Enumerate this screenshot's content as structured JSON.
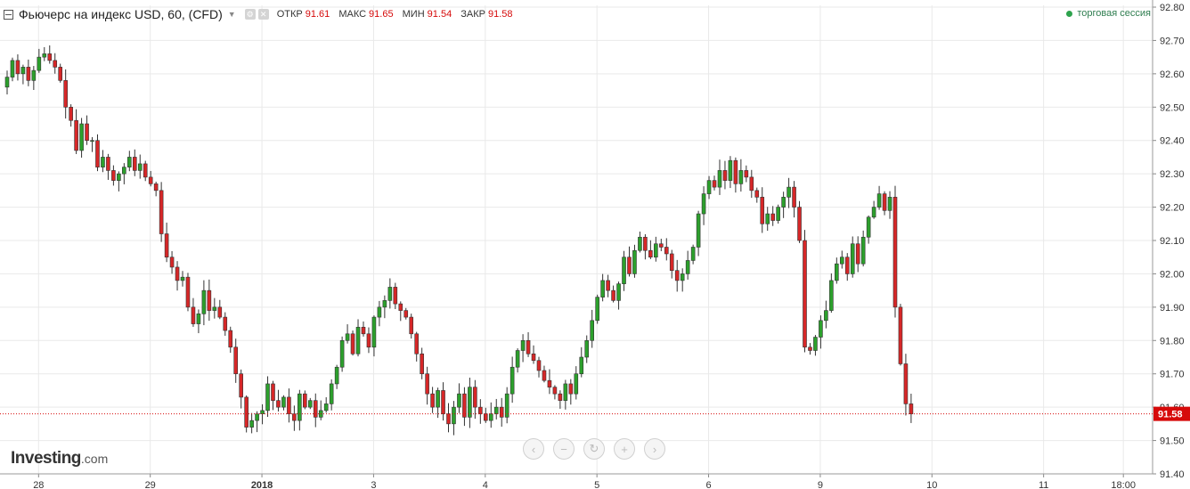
{
  "header": {
    "title": "Фьючерс на индекс USD, 60, (CFD)",
    "ohlc": [
      {
        "label": "ОТКР",
        "value": "91.61"
      },
      {
        "label": "МАКС",
        "value": "91.65"
      },
      {
        "label": "МИН",
        "value": "91.54"
      },
      {
        "label": "ЗАКР",
        "value": "91.58"
      }
    ],
    "session": "торговая сессия"
  },
  "logo": {
    "brand": "Investing",
    "domain": ".com"
  },
  "colors": {
    "up": "#2ca02c",
    "down": "#d62728",
    "last_price": "#d60a0a",
    "grid": "#e9e9e9"
  },
  "nav_icons": [
    "chevron-left-icon",
    "minus-icon",
    "reset-icon",
    "plus-icon",
    "chevron-right-icon"
  ],
  "chart_data": {
    "type": "candlestick",
    "y_ticks": [
      "92.80",
      "92.70",
      "92.60",
      "92.50",
      "92.40",
      "92.30",
      "92.20",
      "92.10",
      "92.00",
      "91.90",
      "91.80",
      "91.70",
      "91.60",
      "91.50",
      "91.40"
    ],
    "ylim": [
      91.4,
      92.8
    ],
    "grid": true,
    "last_price": 91.58,
    "last_price_label": "91.58",
    "x_ticks": [
      {
        "label": "28",
        "bar": 6
      },
      {
        "label": "29",
        "bar": 27
      },
      {
        "label": "2018",
        "bar": 48
      },
      {
        "label": "3",
        "bar": 69
      },
      {
        "label": "4",
        "bar": 90
      },
      {
        "label": "5",
        "bar": 111
      },
      {
        "label": "6",
        "bar": 132
      },
      {
        "label": "9",
        "bar": 153
      },
      {
        "label": "10",
        "bar": 174
      },
      {
        "label": "11",
        "bar": 195
      },
      {
        "label": "18:00",
        "bar": 210
      }
    ],
    "closes": [
      92.59,
      92.64,
      92.6,
      92.62,
      92.58,
      92.61,
      92.65,
      92.66,
      92.64,
      92.62,
      92.58,
      92.5,
      92.46,
      92.37,
      92.45,
      92.4,
      92.4,
      92.32,
      92.35,
      92.31,
      92.28,
      92.3,
      92.32,
      92.35,
      92.31,
      92.33,
      92.29,
      92.27,
      92.25,
      92.12,
      92.05,
      92.02,
      91.98,
      91.99,
      91.9,
      91.85,
      91.88,
      91.95,
      91.89,
      91.9,
      91.87,
      91.83,
      91.78,
      91.7,
      91.63,
      91.54,
      91.56,
      91.58,
      91.59,
      91.67,
      91.62,
      91.6,
      91.63,
      91.58,
      91.56,
      91.64,
      91.6,
      91.62,
      91.57,
      91.59,
      91.61,
      91.67,
      91.72,
      91.8,
      91.82,
      91.76,
      91.84,
      91.82,
      91.78,
      91.87,
      91.9,
      91.92,
      91.96,
      91.91,
      91.89,
      91.87,
      91.82,
      91.76,
      91.7,
      91.64,
      91.6,
      91.65,
      91.58,
      91.55,
      91.6,
      91.64,
      91.57,
      91.66,
      91.6,
      91.58,
      91.56,
      91.58,
      91.6,
      91.57,
      91.64,
      91.72,
      91.77,
      91.8,
      91.76,
      91.74,
      91.71,
      91.68,
      91.66,
      91.64,
      91.62,
      91.67,
      91.64,
      91.7,
      91.75,
      91.8,
      91.86,
      91.93,
      91.98,
      91.95,
      91.92,
      91.97,
      92.05,
      92.0,
      92.07,
      92.11,
      92.07,
      92.05,
      92.09,
      92.08,
      92.06,
      92.01,
      91.98,
      92.0,
      92.04,
      92.08,
      92.18,
      92.24,
      92.28,
      92.26,
      92.31,
      92.28,
      92.34,
      92.27,
      92.31,
      92.29,
      92.25,
      92.23,
      92.15,
      92.18,
      92.16,
      92.2,
      92.23,
      92.26,
      92.2,
      92.1,
      91.78,
      91.77,
      91.81,
      91.86,
      91.89,
      91.98,
      92.03,
      92.05,
      92.0,
      92.09,
      92.03,
      92.11,
      92.17,
      92.2,
      92.24,
      92.19,
      92.23,
      91.9,
      91.73,
      91.61,
      91.58
    ]
  }
}
